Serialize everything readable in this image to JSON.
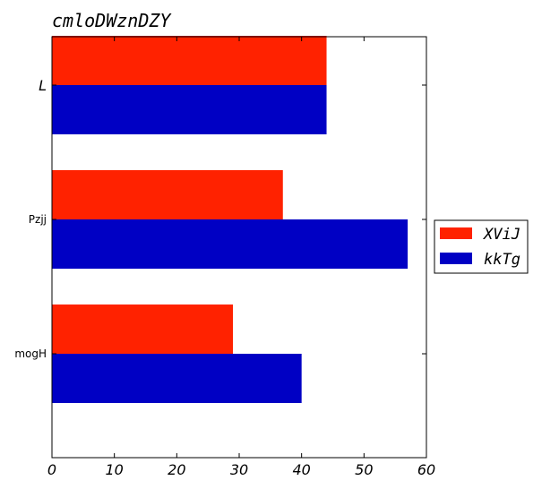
{
  "chart_data": {
    "type": "bar",
    "orientation": "horizontal",
    "title": "cmloDWznDZY",
    "xlabel": "",
    "ylabel": "",
    "categories": [
      "L",
      "Pzjj",
      "mogH"
    ],
    "series": [
      {
        "name": "XViJ",
        "color": "#ff2200",
        "values": [
          44,
          37,
          29
        ]
      },
      {
        "name": "kkTg",
        "color": "#0000c4",
        "values": [
          44,
          57,
          40
        ]
      }
    ],
    "xlim": [
      0,
      60
    ],
    "xticks": [
      0,
      10,
      20,
      30,
      40,
      50,
      60
    ],
    "grid": false,
    "legend": "outside-right"
  }
}
